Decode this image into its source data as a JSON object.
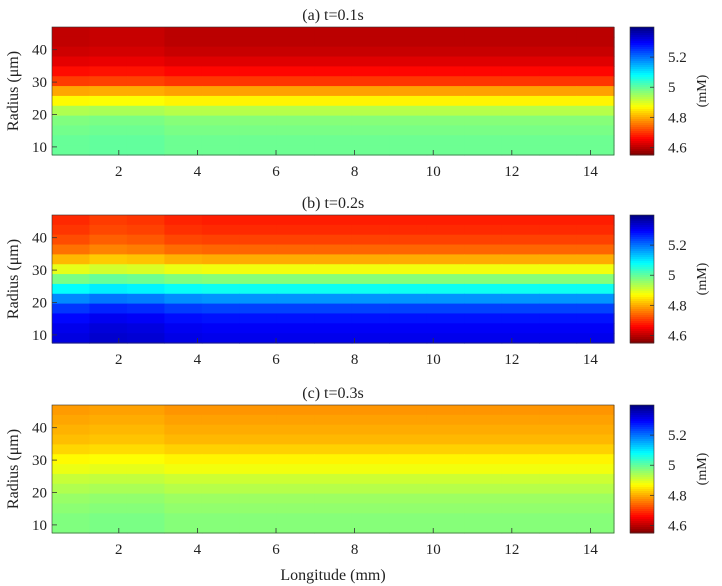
{
  "chart_data": [
    {
      "type": "heatmap",
      "title": "(a) t=0.1s",
      "xlabel": "",
      "ylabel": "Radius (μm)",
      "xlim": [
        0.3,
        14.6
      ],
      "ylim": [
        7.5,
        47
      ],
      "xticks": [
        2,
        4,
        6,
        8,
        10,
        12,
        14
      ],
      "yticks": [
        10,
        20,
        30,
        40
      ],
      "colorbar": {
        "label": "(mM)",
        "range": [
          4.55,
          5.4
        ],
        "ticks": [
          4.6,
          4.8,
          5,
          5.2
        ],
        "colormap": "jet-reversed"
      },
      "rows": [
        {
          "radius": 46,
          "value": 4.6
        },
        {
          "radius": 43,
          "value": 4.6
        },
        {
          "radius": 40,
          "value": 4.61
        },
        {
          "radius": 37,
          "value": 4.63
        },
        {
          "radius": 34,
          "value": 4.66
        },
        {
          "radius": 31,
          "value": 4.7
        },
        {
          "radius": 28,
          "value": 4.79
        },
        {
          "radius": 25,
          "value": 4.86
        },
        {
          "radius": 22,
          "value": 4.93
        },
        {
          "radius": 19,
          "value": 4.97
        },
        {
          "radius": 16,
          "value": 4.98
        },
        {
          "radius": 13,
          "value": 4.99
        },
        {
          "radius": 10,
          "value": 4.99
        }
      ],
      "column_offsets": [
        0.005,
        0.01,
        0.01,
        0.0,
        0.0,
        0.0,
        0.0,
        0.0,
        0.0,
        0.0,
        0.0,
        0.0,
        0.0,
        0.0,
        0.0
      ]
    },
    {
      "type": "heatmap",
      "title": "(b) t=0.2s",
      "xlabel": "",
      "ylabel": "Radius (μm)",
      "xlim": [
        0.3,
        14.6
      ],
      "ylim": [
        7.5,
        47
      ],
      "xticks": [
        2,
        4,
        6,
        8,
        10,
        12,
        14
      ],
      "yticks": [
        10,
        20,
        30,
        40
      ],
      "colorbar": {
        "label": "(mM)",
        "range": [
          4.55,
          5.4
        ],
        "ticks": [
          4.6,
          4.8,
          5,
          5.2
        ],
        "colormap": "jet-reversed"
      },
      "rows": [
        {
          "radius": 46,
          "value": 4.68
        },
        {
          "radius": 43,
          "value": 4.69
        },
        {
          "radius": 40,
          "value": 4.71
        },
        {
          "radius": 37,
          "value": 4.74
        },
        {
          "radius": 34,
          "value": 4.8
        },
        {
          "radius": 31,
          "value": 4.88
        },
        {
          "radius": 28,
          "value": 4.97
        },
        {
          "radius": 25,
          "value": 5.07
        },
        {
          "radius": 22,
          "value": 5.17
        },
        {
          "radius": 19,
          "value": 5.24
        },
        {
          "radius": 16,
          "value": 5.28
        },
        {
          "radius": 13,
          "value": 5.3
        },
        {
          "radius": 10,
          "value": 5.31
        }
      ],
      "column_offsets": [
        0.01,
        0.025,
        0.02,
        0.005,
        0.0,
        0.0,
        0.0,
        0.0,
        0.0,
        0.0,
        0.0,
        0.0,
        0.0,
        0.0,
        0.0
      ]
    },
    {
      "type": "heatmap",
      "title": "(c) t=0.3s",
      "xlabel": "Longitude (mm)",
      "ylabel": "Radius (μm)",
      "xlim": [
        0.3,
        14.6
      ],
      "ylim": [
        7.5,
        47
      ],
      "xticks": [
        2,
        4,
        6,
        8,
        10,
        12,
        14
      ],
      "yticks": [
        10,
        20,
        30,
        40
      ],
      "colorbar": {
        "label": "(mM)",
        "range": [
          4.55,
          5.4
        ],
        "ticks": [
          4.6,
          4.8,
          5,
          5.2
        ],
        "colormap": "jet-reversed"
      },
      "rows": [
        {
          "radius": 46,
          "value": 4.78
        },
        {
          "radius": 43,
          "value": 4.79
        },
        {
          "radius": 40,
          "value": 4.8
        },
        {
          "radius": 37,
          "value": 4.81
        },
        {
          "radius": 34,
          "value": 4.83
        },
        {
          "radius": 31,
          "value": 4.86
        },
        {
          "radius": 28,
          "value": 4.88
        },
        {
          "radius": 25,
          "value": 4.91
        },
        {
          "radius": 22,
          "value": 4.93
        },
        {
          "radius": 19,
          "value": 4.95
        },
        {
          "radius": 16,
          "value": 4.96
        },
        {
          "radius": 13,
          "value": 4.97
        },
        {
          "radius": 10,
          "value": 4.97
        }
      ],
      "column_offsets": [
        0.005,
        0.01,
        0.01,
        0.0,
        0.0,
        0.0,
        0.0,
        0.0,
        0.0,
        0.0,
        0.0,
        0.0,
        0.0,
        0.0,
        0.0
      ]
    }
  ]
}
